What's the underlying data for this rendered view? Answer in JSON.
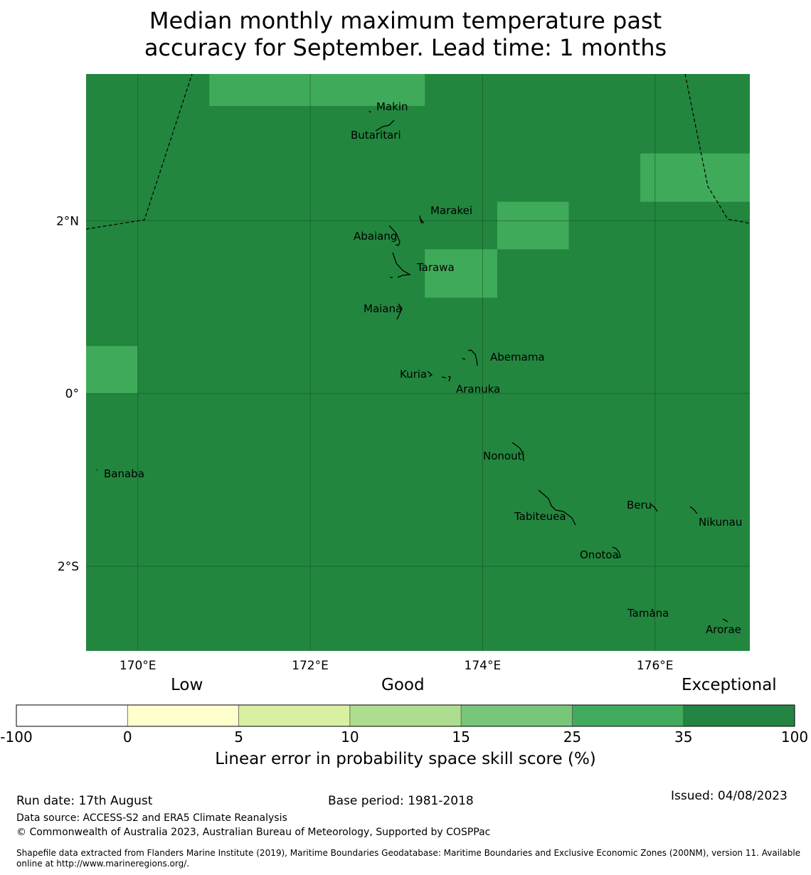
{
  "title_line1": "Median monthly maximum temperature past",
  "title_line2": "accuracy for September. Lead time: 1 months",
  "map": {
    "lon_range": [
      169.4,
      177.1
    ],
    "lat_range": [
      -2.98,
      3.7
    ],
    "background_color": "#23863f",
    "cell_high_color": "#40aa5b",
    "high_cells": [
      {
        "lon": [
          170.83,
          173.33
        ],
        "lat": [
          3.33,
          3.7
        ]
      },
      {
        "lon": [
          175.83,
          177.1
        ],
        "lat": [
          2.22,
          2.78
        ]
      },
      {
        "lon": [
          174.17,
          175.0
        ],
        "lat": [
          1.67,
          2.22
        ]
      },
      {
        "lon": [
          173.33,
          174.17
        ],
        "lat": [
          1.11,
          1.67
        ]
      },
      {
        "lon": [
          169.4,
          170.0
        ],
        "lat": [
          0.0,
          0.55
        ]
      }
    ],
    "x_ticks": [
      {
        "value": 170,
        "label": "170°E"
      },
      {
        "value": 172,
        "label": "172°E"
      },
      {
        "value": 174,
        "label": "174°E"
      },
      {
        "value": 176,
        "label": "176°E"
      }
    ],
    "y_ticks": [
      {
        "value": 2,
        "label": "2°N"
      },
      {
        "value": 0,
        "label": "0°"
      },
      {
        "value": -2,
        "label": "2°S"
      }
    ],
    "islands": [
      {
        "name": "Makin",
        "lon": 173.0,
        "lat": 3.29
      },
      {
        "name": "Butaritari",
        "lon": 172.78,
        "lat": 3.07
      },
      {
        "name": "Marakei",
        "lon": 173.28,
        "lat": 2.0
      },
      {
        "name": "Abaiang",
        "lon": 172.95,
        "lat": 1.83
      },
      {
        "name": "Tarawa",
        "lon": 172.98,
        "lat": 1.4
      },
      {
        "name": "Maiana",
        "lon": 173.0,
        "lat": 0.93
      },
      {
        "name": "Abemama",
        "lon": 173.9,
        "lat": 0.4
      },
      {
        "name": "Kuria",
        "lon": 173.4,
        "lat": 0.23
      },
      {
        "name": "Aranuka",
        "lon": 173.6,
        "lat": 0.17
      },
      {
        "name": "Nonouti",
        "lon": 174.43,
        "lat": -0.65
      },
      {
        "name": "Banaba",
        "lon": 169.53,
        "lat": -0.86
      },
      {
        "name": "Tabiteuea",
        "lon": 174.8,
        "lat": -1.4
      },
      {
        "name": "Beru",
        "lon": 175.98,
        "lat": -1.33
      },
      {
        "name": "Nikunau",
        "lon": 176.45,
        "lat": -1.36
      },
      {
        "name": "Onotoa",
        "lon": 175.56,
        "lat": -1.83
      },
      {
        "name": "Tamana",
        "lon": 175.98,
        "lat": -2.5
      },
      {
        "name": "Arorae",
        "lon": 176.83,
        "lat": -2.65
      }
    ]
  },
  "colorbar": {
    "category_labels": [
      "Low",
      "Good",
      "Exceptional"
    ],
    "bins": [
      {
        "from": -100,
        "to": 0,
        "color": "#ffffff"
      },
      {
        "from": 0,
        "to": 5,
        "color": "#ffffcc"
      },
      {
        "from": 5,
        "to": 10,
        "color": "#d9f0a3"
      },
      {
        "from": 10,
        "to": 15,
        "color": "#addd8e"
      },
      {
        "from": 15,
        "to": 25,
        "color": "#78c679"
      },
      {
        "from": 25,
        "to": 35,
        "color": "#41ab5d"
      },
      {
        "from": 35,
        "to": 100,
        "color": "#238443"
      }
    ],
    "tick_labels": [
      "-100",
      "0",
      "5",
      "10",
      "15",
      "25",
      "35",
      "100"
    ],
    "label": "Linear error in probability space skill score (%)"
  },
  "footer": {
    "run_date": "Run date: 17th August",
    "base_period": "Base period: 1981-2018",
    "issued": "Issued: 04/08/2023",
    "data_source": "Data source: ACCESS-S2 and ERA5 Climate Reanalysis",
    "copyright": "© Commonwealth of Australia 2023, Australian Bureau of Meteorology, Supported by COSPPac",
    "shapefile_line1": "Shapefile data extracted from Flanders Marine Institute (2019), Maritime Boundaries Geodatabase: Maritime Boundaries and Exclusive Economic Zones (200NM), version 11. Available",
    "shapefile_line2": "online at http://www.marineregions.org/."
  }
}
